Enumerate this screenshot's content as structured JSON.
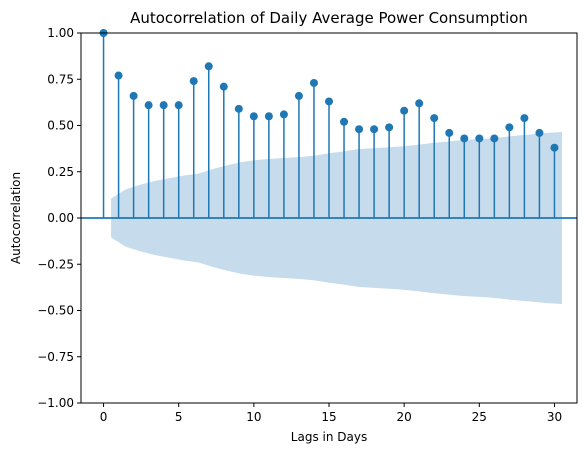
{
  "chart_data": {
    "type": "stem",
    "title": "Autocorrelation of Daily Average Power Consumption",
    "xlabel": "Lags in Days",
    "ylabel": "Autocorrelation",
    "xlim": [
      -1.5,
      31.5
    ],
    "ylim": [
      -1.0,
      1.0
    ],
    "x_ticks": [
      0,
      5,
      10,
      15,
      20,
      25,
      30
    ],
    "y_ticks": [
      -1.0,
      -0.75,
      -0.5,
      -0.25,
      0.0,
      0.25,
      0.5,
      0.75,
      1.0
    ],
    "x_tick_labels": [
      "0",
      "5",
      "10",
      "15",
      "20",
      "25",
      "30"
    ],
    "y_tick_labels": [
      "−1.00",
      "−0.75",
      "−0.50",
      "−0.25",
      "0.00",
      "0.25",
      "0.50",
      "0.75",
      "1.00"
    ],
    "grid": false,
    "series": [
      {
        "x": [
          0,
          1,
          2,
          3,
          4,
          5,
          6,
          7,
          8,
          9,
          10,
          11,
          12,
          13,
          14,
          15,
          16,
          17,
          18,
          19,
          20,
          21,
          22,
          23,
          24,
          25,
          26,
          27,
          28,
          29,
          30
        ],
        "values": [
          1.0,
          0.77,
          0.66,
          0.61,
          0.61,
          0.61,
          0.74,
          0.82,
          0.71,
          0.59,
          0.55,
          0.55,
          0.56,
          0.66,
          0.73,
          0.63,
          0.52,
          0.48,
          0.48,
          0.49,
          0.58,
          0.62,
          0.54,
          0.46,
          0.43,
          0.43,
          0.43,
          0.49,
          0.54,
          0.46,
          0.38
        ]
      }
    ],
    "confidence_band": {
      "x_start": 0.5,
      "x_end": 30.5,
      "half_width": [
        0.105,
        0.155,
        0.18,
        0.2,
        0.215,
        0.23,
        0.24,
        0.265,
        0.285,
        0.303,
        0.313,
        0.32,
        0.325,
        0.33,
        0.337,
        0.35,
        0.36,
        0.372,
        0.377,
        0.382,
        0.387,
        0.395,
        0.405,
        0.412,
        0.42,
        0.425,
        0.43,
        0.438,
        0.446,
        0.453,
        0.46,
        0.465
      ],
      "color": "#c6dbec"
    },
    "colors": {
      "stem": "#1f77b4",
      "zero_line": "#1f77b4"
    }
  }
}
